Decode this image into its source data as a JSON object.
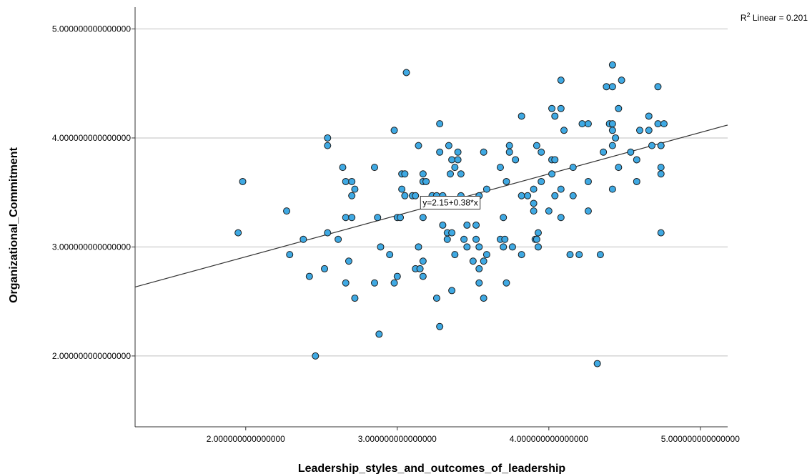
{
  "chart_data": {
    "type": "scatter",
    "xlabel": "Leadership_styles_and_outcomes_of_leadership",
    "ylabel": "Organizational_Commitment",
    "xlim": [
      1.27,
      5.18
    ],
    "ylim": [
      1.35,
      5.2
    ],
    "x_ticks": [
      2,
      3,
      4,
      5
    ],
    "y_ticks": [
      2,
      3,
      4,
      5
    ],
    "x_tick_labels": [
      "2.000000000000000",
      "3.000000000000000",
      "4.000000000000000",
      "5.000000000000000"
    ],
    "y_tick_labels": [
      "2.000000000000000",
      "3.000000000000000",
      "4.000000000000000",
      "5.000000000000000"
    ],
    "grid": "horizontal",
    "r2_prefix": "R",
    "r2_sup": "2",
    "r2_suffix": " Linear = 0.201",
    "fit": {
      "intercept": 2.15,
      "slope": 0.38,
      "label": "y=2.15+0.38*x",
      "label_anchor": [
        3.35,
        3.38
      ]
    },
    "colors": {
      "point_fill": "#3fa9e3",
      "point_stroke": "#1a1a1a",
      "line": "#333333",
      "grid": "#bfbfbf",
      "axis": "#333333"
    },
    "points": [
      [
        1.95,
        3.13
      ],
      [
        1.98,
        3.6
      ],
      [
        2.27,
        3.33
      ],
      [
        2.29,
        2.93
      ],
      [
        2.38,
        3.07
      ],
      [
        2.42,
        2.73
      ],
      [
        2.46,
        2.0
      ],
      [
        2.52,
        2.8
      ],
      [
        2.54,
        3.13
      ],
      [
        2.54,
        4.0
      ],
      [
        2.54,
        3.93
      ],
      [
        2.61,
        3.07
      ],
      [
        2.64,
        3.73
      ],
      [
        2.66,
        3.27
      ],
      [
        2.66,
        2.67
      ],
      [
        2.66,
        3.6
      ],
      [
        2.68,
        2.87
      ],
      [
        2.7,
        3.6
      ],
      [
        2.7,
        3.27
      ],
      [
        2.7,
        3.47
      ],
      [
        2.72,
        3.53
      ],
      [
        2.72,
        2.53
      ],
      [
        2.85,
        3.73
      ],
      [
        2.85,
        2.67
      ],
      [
        2.87,
        3.27
      ],
      [
        2.88,
        2.2
      ],
      [
        2.89,
        3.0
      ],
      [
        2.95,
        2.93
      ],
      [
        2.98,
        2.67
      ],
      [
        2.98,
        4.07
      ],
      [
        3.0,
        2.73
      ],
      [
        3.0,
        3.27
      ],
      [
        3.02,
        3.27
      ],
      [
        3.03,
        3.67
      ],
      [
        3.03,
        3.53
      ],
      [
        3.05,
        3.67
      ],
      [
        3.05,
        3.47
      ],
      [
        3.06,
        4.6
      ],
      [
        3.1,
        3.47
      ],
      [
        3.12,
        3.47
      ],
      [
        3.12,
        2.8
      ],
      [
        3.14,
        3.93
      ],
      [
        3.14,
        3.0
      ],
      [
        3.15,
        2.8
      ],
      [
        3.17,
        3.67
      ],
      [
        3.17,
        3.6
      ],
      [
        3.17,
        3.27
      ],
      [
        3.17,
        2.87
      ],
      [
        3.17,
        2.73
      ],
      [
        3.19,
        3.6
      ],
      [
        3.23,
        3.47
      ],
      [
        3.26,
        3.47
      ],
      [
        3.26,
        2.53
      ],
      [
        3.28,
        3.87
      ],
      [
        3.28,
        4.13
      ],
      [
        3.28,
        2.27
      ],
      [
        3.3,
        3.47
      ],
      [
        3.3,
        3.2
      ],
      [
        3.33,
        3.13
      ],
      [
        3.33,
        3.07
      ],
      [
        3.34,
        3.93
      ],
      [
        3.35,
        3.67
      ],
      [
        3.36,
        3.13
      ],
      [
        3.36,
        3.8
      ],
      [
        3.36,
        2.6
      ],
      [
        3.38,
        3.73
      ],
      [
        3.38,
        2.93
      ],
      [
        3.4,
        3.87
      ],
      [
        3.4,
        3.8
      ],
      [
        3.42,
        3.67
      ],
      [
        3.42,
        3.47
      ],
      [
        3.44,
        3.07
      ],
      [
        3.46,
        3.0
      ],
      [
        3.46,
        3.2
      ],
      [
        3.5,
        2.87
      ],
      [
        3.52,
        3.2
      ],
      [
        3.52,
        3.07
      ],
      [
        3.54,
        3.47
      ],
      [
        3.54,
        3.0
      ],
      [
        3.54,
        2.8
      ],
      [
        3.54,
        2.67
      ],
      [
        3.57,
        3.87
      ],
      [
        3.57,
        2.87
      ],
      [
        3.57,
        2.53
      ],
      [
        3.59,
        3.53
      ],
      [
        3.59,
        2.93
      ],
      [
        3.68,
        3.73
      ],
      [
        3.68,
        3.07
      ],
      [
        3.7,
        3.0
      ],
      [
        3.7,
        3.27
      ],
      [
        3.71,
        3.07
      ],
      [
        3.72,
        3.6
      ],
      [
        3.72,
        2.67
      ],
      [
        3.74,
        3.93
      ],
      [
        3.74,
        3.87
      ],
      [
        3.76,
        3.0
      ],
      [
        3.78,
        3.8
      ],
      [
        3.82,
        4.2
      ],
      [
        3.82,
        3.47
      ],
      [
        3.82,
        2.93
      ],
      [
        3.86,
        3.47
      ],
      [
        3.9,
        3.53
      ],
      [
        3.9,
        3.4
      ],
      [
        3.9,
        3.33
      ],
      [
        3.91,
        3.07
      ],
      [
        3.92,
        3.93
      ],
      [
        3.92,
        3.07
      ],
      [
        3.93,
        3.13
      ],
      [
        3.93,
        3.0
      ],
      [
        3.95,
        3.6
      ],
      [
        3.95,
        3.87
      ],
      [
        4.0,
        3.33
      ],
      [
        4.02,
        4.27
      ],
      [
        4.02,
        3.8
      ],
      [
        4.02,
        3.67
      ],
      [
        4.04,
        4.2
      ],
      [
        4.04,
        3.8
      ],
      [
        4.04,
        3.47
      ],
      [
        4.08,
        4.53
      ],
      [
        4.08,
        4.27
      ],
      [
        4.08,
        3.53
      ],
      [
        4.08,
        3.27
      ],
      [
        4.1,
        4.07
      ],
      [
        4.14,
        2.93
      ],
      [
        4.16,
        3.73
      ],
      [
        4.16,
        3.47
      ],
      [
        4.2,
        2.93
      ],
      [
        4.22,
        4.13
      ],
      [
        4.26,
        4.13
      ],
      [
        4.26,
        3.6
      ],
      [
        4.26,
        3.33
      ],
      [
        4.32,
        1.93
      ],
      [
        4.34,
        2.93
      ],
      [
        4.36,
        3.87
      ],
      [
        4.38,
        4.47
      ],
      [
        4.4,
        4.13
      ],
      [
        4.42,
        4.67
      ],
      [
        4.42,
        4.47
      ],
      [
        4.42,
        4.13
      ],
      [
        4.42,
        4.07
      ],
      [
        4.42,
        3.93
      ],
      [
        4.42,
        3.53
      ],
      [
        4.44,
        4.0
      ],
      [
        4.46,
        4.27
      ],
      [
        4.46,
        3.73
      ],
      [
        4.48,
        4.53
      ],
      [
        4.54,
        3.87
      ],
      [
        4.58,
        3.8
      ],
      [
        4.58,
        3.6
      ],
      [
        4.6,
        4.07
      ],
      [
        4.66,
        4.2
      ],
      [
        4.66,
        4.07
      ],
      [
        4.68,
        3.93
      ],
      [
        4.72,
        4.47
      ],
      [
        4.72,
        4.13
      ],
      [
        4.74,
        3.93
      ],
      [
        4.74,
        3.73
      ],
      [
        4.74,
        3.67
      ],
      [
        4.74,
        3.13
      ],
      [
        4.76,
        4.13
      ],
      [
        4.74,
        3.93
      ]
    ]
  }
}
